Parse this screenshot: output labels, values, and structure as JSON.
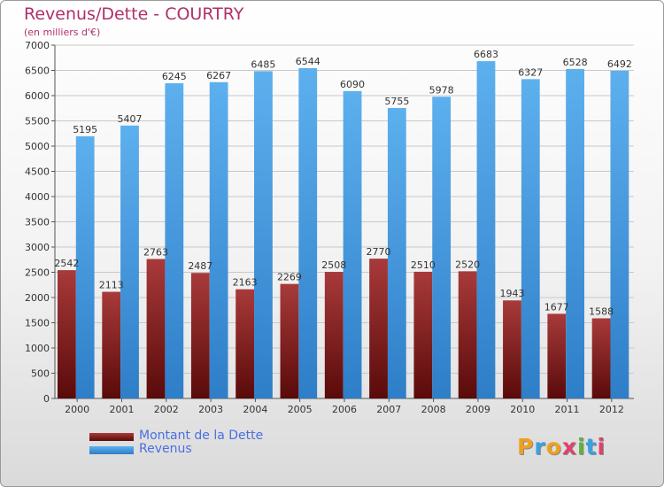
{
  "title": "Revenus/Dette - COURTRY",
  "subtitle": "(en milliers d'€)",
  "logo": {
    "text": "Proxiti",
    "letters": [
      "P",
      "r",
      "o",
      "x",
      "i",
      "t",
      "i"
    ],
    "colors": [
      "#f0a020",
      "#3aa0e0",
      "#f0a020",
      "#e04070",
      "#60b040",
      "#3aa0e0",
      "#e04070"
    ]
  },
  "colors": {
    "dette_top": "#a83a3a",
    "dette_bottom": "#5a0a0a",
    "revenus_top": "#5db0ee",
    "revenus_bottom": "#2e7ec8",
    "legend_text": "#4a6fe0",
    "title": "#b0306a"
  },
  "chart_data": {
    "type": "bar",
    "categories": [
      "2000",
      "2001",
      "2002",
      "2003",
      "2004",
      "2005",
      "2006",
      "2007",
      "2008",
      "2009",
      "2010",
      "2011",
      "2012"
    ],
    "series": [
      {
        "name": "Montant de la Dette",
        "values": [
          2542,
          2113,
          2763,
          2487,
          2163,
          2269,
          2508,
          2770,
          2510,
          2520,
          1943,
          1677,
          1588
        ],
        "labels": [
          "2542",
          "2113",
          "2763",
          "2487",
          "2163",
          "2269",
          "2508",
          "2770",
          "2510",
          "2520",
          "1943",
          "1677",
          "1588"
        ]
      },
      {
        "name": "Revenus",
        "values": [
          5195,
          5407,
          6245,
          6267,
          6485,
          6544,
          6090,
          5755,
          5978,
          6683,
          6327,
          6528,
          6492
        ],
        "labels": [
          "5195",
          "5407",
          "6245",
          "6267",
          "6485",
          "6544",
          "6090",
          "5755",
          "5978",
          "6683",
          "6327",
          "6528",
          "6492"
        ]
      }
    ],
    "ylim": [
      0,
      7000
    ],
    "yticks": [
      "0",
      "500",
      "1000",
      "1500",
      "2000",
      "2500",
      "3000",
      "3500",
      "4000",
      "4500",
      "5000",
      "5500",
      "6000",
      "6500",
      "7000"
    ],
    "grid": true,
    "legend_position": "bottom-left"
  }
}
